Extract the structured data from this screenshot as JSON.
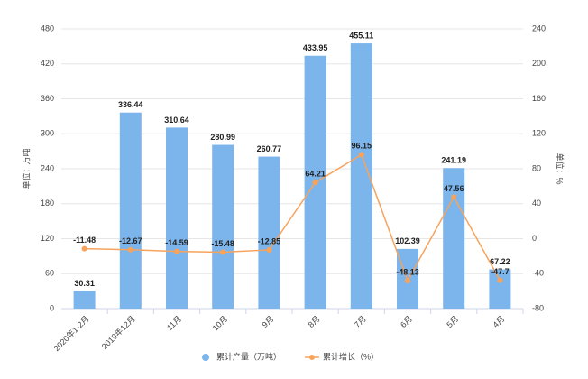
{
  "chart_data": {
    "type": "bar",
    "categories": [
      "2020年1-2月",
      "2019年12月",
      "11月",
      "10月",
      "9月",
      "8月",
      "7月",
      "6月",
      "5月",
      "4月"
    ],
    "series": [
      {
        "name": "累计产量（万吨）",
        "color": "#7cb5ec",
        "values": [
          30.31,
          336.44,
          310.64,
          280.99,
          260.77,
          433.95,
          455.11,
          102.39,
          241.19,
          67.22
        ]
      },
      {
        "name": "累计增长（%）",
        "color": "#f7a35c",
        "axis": "y2",
        "values": [
          -11.48,
          -12.67,
          -14.59,
          -15.48,
          -12.85,
          64.21,
          96.15,
          -48.13,
          47.56,
          -47.7
        ]
      }
    ],
    "ylabel": "单位：万吨",
    "y2label": "单位：%",
    "ylim": [
      0,
      480
    ],
    "yticks": [
      0,
      60,
      120,
      180,
      240,
      300,
      360,
      420,
      480
    ],
    "y2lim": [
      -80,
      240
    ],
    "y2ticks": [
      -80,
      -40,
      0,
      40,
      80,
      120,
      160,
      200,
      240
    ],
    "grid": true
  }
}
